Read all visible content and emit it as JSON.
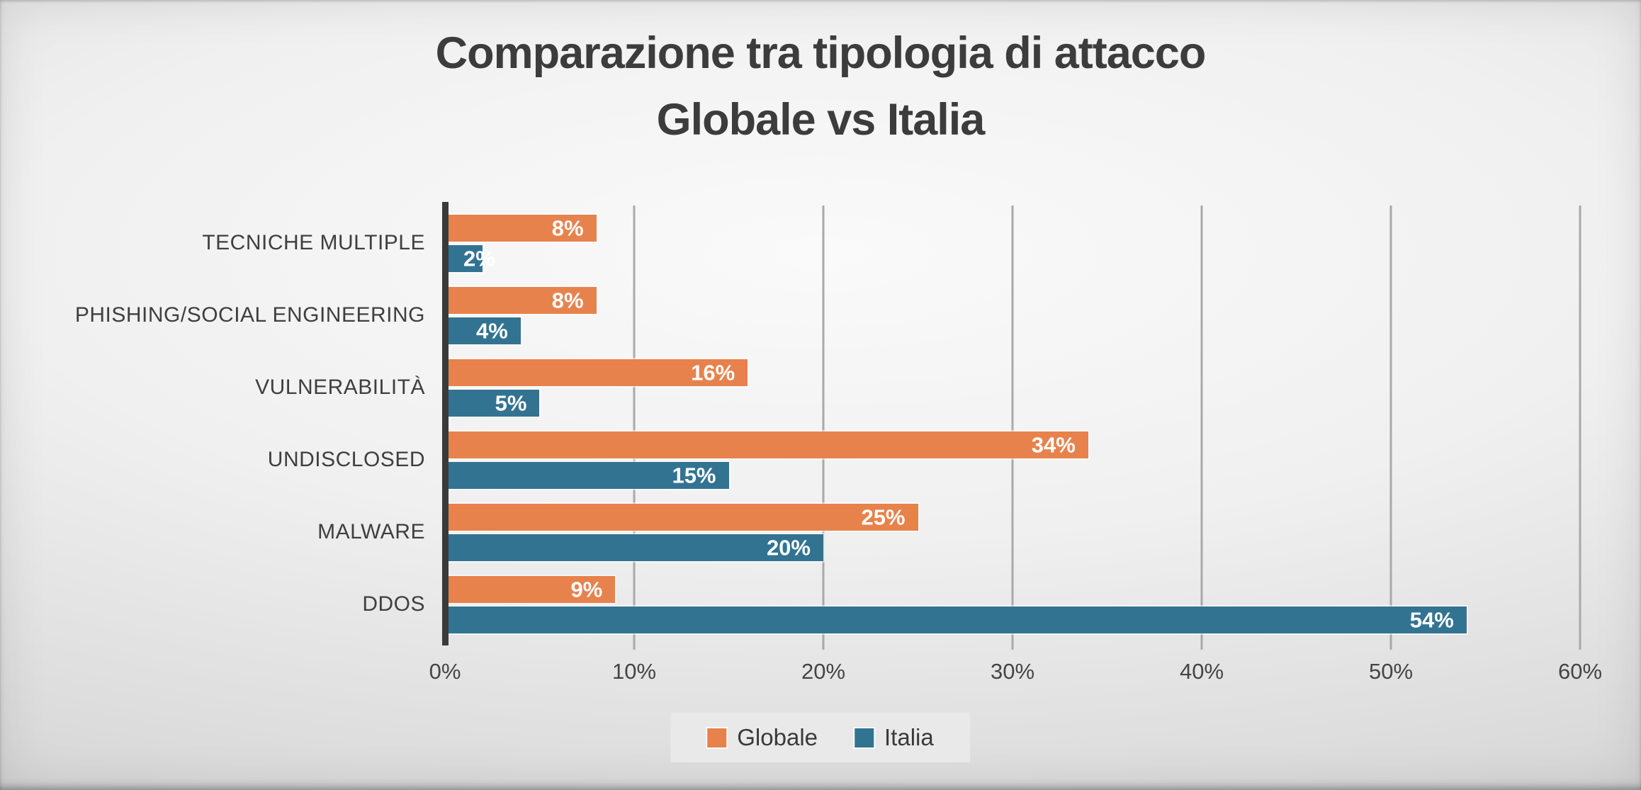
{
  "title": {
    "line1": "Comparazione tra tipologia di attacco",
    "line2": "Globale vs Italia"
  },
  "chart_data": {
    "type": "bar",
    "orientation": "horizontal",
    "title": "Comparazione tra tipologia di attacco Globale vs Italia",
    "categories": [
      "TECNICHE MULTIPLE",
      "PHISHING/SOCIAL ENGINEERING",
      "VULNERABILITÀ",
      "UNDISCLOSED",
      "MALWARE",
      "DDOS"
    ],
    "series": [
      {
        "name": "Globale",
        "color": "#E7824D",
        "values": [
          8,
          8,
          16,
          34,
          25,
          9
        ]
      },
      {
        "name": "Italia",
        "color": "#337392",
        "values": [
          2,
          4,
          5,
          15,
          20,
          54
        ]
      }
    ],
    "value_suffix": "%",
    "data_labels": [
      [
        "8%",
        "8%",
        "16%",
        "34%",
        "25%",
        "9%"
      ],
      [
        "2%",
        "4%",
        "5%",
        "15%",
        "20%",
        "54%"
      ]
    ],
    "x_axis": {
      "min": 0,
      "max": 60,
      "step": 10,
      "ticks": [
        "0%",
        "10%",
        "20%",
        "30%",
        "40%",
        "50%",
        "60%"
      ]
    },
    "grid": true,
    "legend_position": "bottom",
    "legend_labels": [
      "Globale",
      "Italia"
    ]
  },
  "colors": {
    "globale": "#E7824D",
    "italia": "#337392",
    "axis_line": "#3A3A3A",
    "gridline": "#A9A9A9",
    "text": "#3C3C3C",
    "legend_background": "#E9E9E9",
    "data_label_text": "#FFFFFF"
  }
}
